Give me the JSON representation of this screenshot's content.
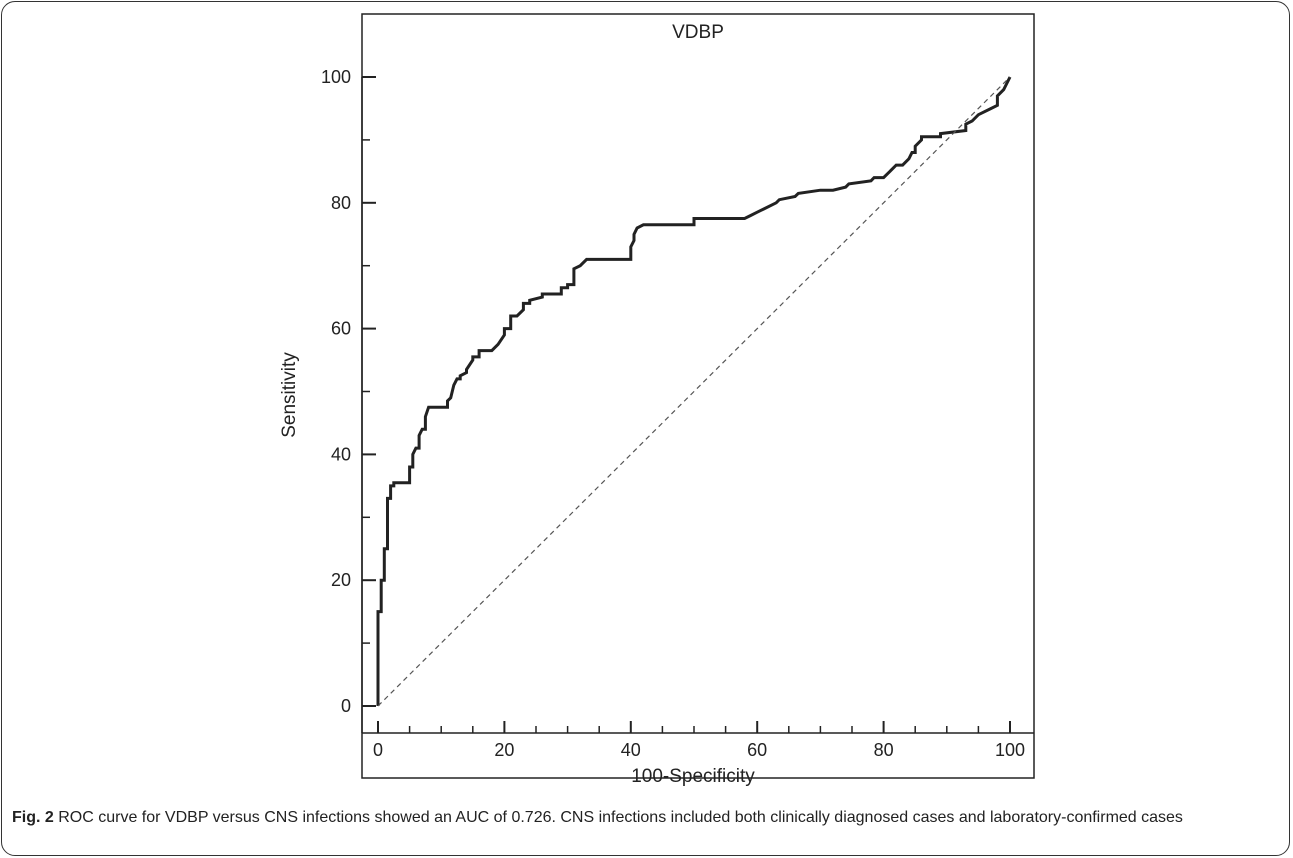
{
  "chart_data": {
    "type": "line",
    "title": "VDBP",
    "xlabel": "100-Specificity",
    "ylabel": "Sensitivity",
    "xlim": [
      0,
      100
    ],
    "ylim": [
      0,
      100
    ],
    "x_ticks": [
      "0",
      "20",
      "40",
      "60",
      "80",
      "100"
    ],
    "y_ticks": [
      "0",
      "20",
      "40",
      "60",
      "80",
      "100"
    ],
    "grid": false,
    "series": [
      {
        "style": "solid",
        "color": "#222222",
        "x": [
          0,
          0,
          0.5,
          0.5,
          1,
          1,
          1.5,
          1.5,
          2,
          2,
          2.5,
          2.5,
          3,
          3,
          5,
          5,
          5.5,
          5.5,
          6,
          6.5,
          6.5,
          7,
          7.5,
          7.5,
          8,
          8,
          11,
          11,
          11.5,
          12,
          12.5,
          13,
          13,
          14,
          14,
          15,
          15,
          16,
          16,
          18,
          19,
          20,
          20,
          21,
          21,
          22,
          23,
          23,
          24,
          24,
          26,
          26,
          29,
          29,
          30,
          30,
          31,
          31,
          32,
          33,
          33,
          35,
          35,
          40,
          40,
          40.5,
          40.5,
          41,
          42,
          43,
          50,
          50,
          58,
          59,
          60,
          61,
          63,
          63.5,
          66,
          66.5,
          70,
          71,
          72,
          74,
          74.5,
          78,
          78.5,
          80,
          81,
          82,
          83,
          84,
          84.5,
          85,
          85,
          86,
          86,
          89,
          89,
          93,
          93,
          94,
          95,
          97,
          98,
          98,
          99,
          100
        ],
        "y": [
          0,
          15,
          15,
          20,
          20,
          25,
          25,
          33,
          33,
          35,
          35,
          35.5,
          35.5,
          35.5,
          35.5,
          38,
          38,
          40,
          41,
          41,
          43,
          44,
          44,
          46,
          47.5,
          47.5,
          47.5,
          48.5,
          49,
          51,
          52,
          52,
          52.5,
          53,
          53.5,
          55,
          55.5,
          55.5,
          56.5,
          56.5,
          57.5,
          59,
          60,
          60,
          62,
          62,
          63,
          64,
          64,
          64.5,
          65,
          65.5,
          65.5,
          66.5,
          66.5,
          67,
          67,
          69.5,
          70,
          71,
          71,
          71,
          71,
          71,
          73,
          74,
          75,
          76,
          76.5,
          76.5,
          76.5,
          77.5,
          77.5,
          78,
          78.5,
          79,
          80,
          80.5,
          81,
          81.5,
          82,
          82,
          82,
          82.5,
          83,
          83.5,
          84,
          84,
          85,
          86,
          86,
          87,
          88,
          88,
          89,
          90,
          90.5,
          90.5,
          91,
          91.5,
          92.5,
          93,
          94,
          95,
          95.5,
          97,
          98,
          100
        ]
      },
      {
        "style": "dashed",
        "color": "#555555",
        "x": [
          0,
          100
        ],
        "y": [
          0,
          100
        ]
      }
    ]
  },
  "caption": {
    "label": "Fig. 2",
    "text": " ROC curve for VDBP versus CNS infections showed an AUC of 0.726. CNS infections included both clinically diagnosed cases and laboratory-confirmed cases"
  }
}
